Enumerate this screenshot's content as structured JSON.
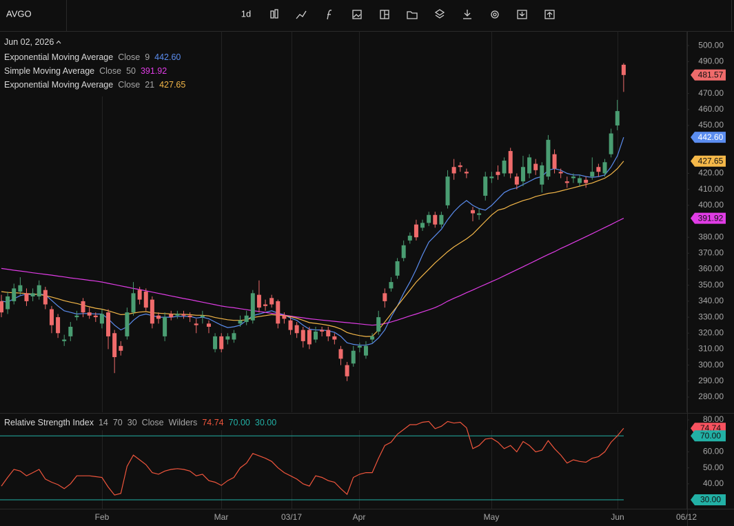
{
  "toolbar": {
    "symbol": "AVGO",
    "interval": "1d"
  },
  "chart_data": [
    {
      "type": "candlestick",
      "date": "Jun 02, 2026",
      "up_color": "#4a9d72",
      "down_color": "#ef6b6b",
      "open": [
        340,
        335,
        340,
        346,
        345,
        343,
        343,
        347,
        335,
        330,
        315,
        318,
        330,
        340,
        333,
        331,
        326,
        333,
        320,
        312,
        318,
        333,
        347,
        346,
        341,
        331,
        318,
        332,
        331,
        332,
        331,
        326,
        330,
        326,
        310,
        318,
        316,
        316,
        326,
        327,
        328,
        344,
        338,
        342,
        340,
        331,
        328,
        325,
        322,
        322,
        316,
        322,
        322,
        318,
        310,
        300,
        301,
        311,
        306,
        316,
        321,
        345,
        348,
        356,
        367,
        378,
        388,
        386,
        389,
        394,
        388,
        400,
        424,
        425,
        421,
        397,
        394,
        406,
        417,
        421,
        420,
        434,
        418,
        415,
        420,
        426,
        413,
        418,
        432,
        421,
        415,
        417,
        414,
        416,
        418,
        424,
        420,
        432,
        450,
        488
      ],
      "high": [
        344,
        346,
        351,
        355,
        348,
        348,
        353,
        349,
        337,
        332,
        319,
        327,
        334,
        342,
        336,
        333,
        335,
        335,
        322,
        315,
        336,
        352,
        349,
        348,
        343,
        333,
        333,
        334,
        334,
        334,
        333,
        329,
        334,
        328,
        320,
        320,
        320,
        322,
        331,
        334,
        347,
        353,
        341,
        344,
        341,
        333,
        330,
        327,
        324,
        324,
        324,
        324,
        324,
        320,
        312,
        302,
        312,
        314,
        315,
        320,
        334,
        348,
        355,
        367,
        378,
        383,
        391,
        391,
        396,
        396,
        396,
        422,
        429,
        427,
        423,
        399,
        398,
        421,
        421,
        425,
        430,
        436,
        420,
        431,
        432,
        429,
        427,
        444,
        435,
        423,
        418,
        420,
        419,
        418,
        430,
        426,
        429,
        448,
        466,
        489
      ],
      "low": [
        330,
        332,
        338,
        344,
        337,
        340,
        341,
        335,
        320,
        317,
        312,
        315,
        328,
        330,
        329,
        327,
        323,
        310,
        295,
        306,
        316,
        331,
        338,
        334,
        323,
        326,
        315,
        328,
        329,
        329,
        327,
        320,
        326,
        320,
        308,
        308,
        313,
        314,
        324,
        325,
        326,
        333,
        334,
        336,
        323,
        326,
        319,
        317,
        311,
        310,
        314,
        318,
        315,
        313,
        300,
        290,
        299,
        308,
        304,
        314,
        319,
        336,
        346,
        354,
        365,
        376,
        378,
        384,
        387,
        386,
        386,
        398,
        416,
        421,
        417,
        390,
        391,
        403,
        414,
        416,
        418,
        417,
        410,
        412,
        417,
        419,
        408,
        416,
        420,
        417,
        411,
        414,
        412,
        411,
        416,
        418,
        418,
        430,
        447,
        471
      ],
      "close": [
        333,
        343,
        348,
        350,
        340,
        345,
        350,
        338,
        325,
        320,
        316,
        324,
        331,
        333,
        331,
        330,
        332,
        318,
        305,
        309,
        333,
        345,
        341,
        336,
        326,
        329,
        330,
        330,
        332,
        331,
        330,
        325,
        331,
        324,
        318,
        310,
        318,
        320,
        328,
        331,
        345,
        336,
        337,
        338,
        326,
        329,
        322,
        320,
        315,
        313,
        321,
        321,
        318,
        316,
        304,
        293,
        309,
        312,
        312,
        318,
        330,
        340,
        352,
        365,
        375,
        381,
        380,
        389,
        394,
        388,
        394,
        418,
        420,
        424,
        420,
        395,
        395,
        418,
        418,
        419,
        428,
        420,
        413,
        424,
        430,
        422,
        425,
        441,
        423,
        420,
        414,
        418,
        417,
        414,
        421,
        421,
        427,
        445,
        459,
        481.57
      ],
      "series": [
        {
          "name": "Exponential Moving Average",
          "source": "Close",
          "period": 9,
          "color": "#5b8def",
          "value_label": "442.60",
          "values": [
            340,
            339.5,
            341.5,
            343.5,
            344.5,
            344,
            344.5,
            344,
            340.5,
            337,
            334,
            333,
            332,
            332.3,
            332.3,
            332,
            332,
            329,
            325,
            322,
            324,
            328,
            331,
            332,
            331,
            330,
            330,
            330,
            330.5,
            330.5,
            330.5,
            329.5,
            330,
            329,
            327,
            325,
            323.5,
            324,
            325,
            328,
            331,
            332,
            333,
            334,
            332.5,
            331.5,
            329.5,
            328,
            325,
            322.5,
            322,
            322,
            321.5,
            320.5,
            318,
            314,
            313,
            312.5,
            312.5,
            313.5,
            317,
            322,
            330,
            337,
            345,
            352,
            360,
            369,
            377,
            381,
            385,
            391,
            396,
            400,
            403,
            400,
            398,
            397,
            400,
            404,
            408,
            410,
            411,
            413,
            415,
            417,
            418,
            422,
            423,
            422,
            420,
            419,
            419,
            418,
            417.5,
            418,
            419,
            424,
            431,
            442.6
          ]
        },
        {
          "name": "Simple Moving Average",
          "source": "Close",
          "period": 50,
          "color": "#e03ce6",
          "values": [
            360.5,
            360,
            359.4,
            358.9,
            358.4,
            357.8,
            357.3,
            356.8,
            356.3,
            355.7,
            355.2,
            354.6,
            354.1,
            353.6,
            353.1,
            352.6,
            352,
            351.2,
            350.4,
            349.6,
            348.8,
            348,
            347.3,
            346.5,
            345.7,
            344.9,
            344.1,
            343.3,
            342.5,
            341.7,
            341,
            340.2,
            339.4,
            338.6,
            337.8,
            337,
            336.4,
            335.9,
            335.3,
            334.7,
            334.1,
            333.6,
            333,
            332.4,
            331.9,
            331.3,
            330.7,
            330.1,
            329.6,
            329,
            328.6,
            328.2,
            327.8,
            327.4,
            327,
            326.6,
            326.2,
            325.8,
            325.4,
            325,
            325.3,
            326,
            327,
            328.2,
            329.5,
            330.8,
            332,
            333.3,
            334.6,
            336,
            337.8,
            340,
            341.8,
            343.5,
            345.3,
            347,
            348.8,
            350.5,
            352.3,
            354,
            355.9,
            357.8,
            359.7,
            361.6,
            363.5,
            365.4,
            367.3,
            369.2,
            371,
            373,
            374.8,
            376.7,
            378.5,
            380.4,
            382.3,
            384.2,
            386.1,
            388,
            390,
            391.92
          ]
        },
        {
          "name": "Exponential Moving Average",
          "source": "Close",
          "period": 21,
          "color": "#f5b849",
          "values": [
            346,
            345.5,
            345.3,
            345.1,
            344.8,
            344.5,
            344.2,
            343.5,
            342.6,
            341.5,
            340.3,
            339.4,
            338.6,
            337.5,
            336.5,
            335.6,
            335,
            334,
            332.8,
            331.6,
            331.8,
            332.6,
            333.2,
            333.5,
            332.8,
            332.5,
            332.3,
            332,
            331.9,
            331.8,
            331.6,
            331.2,
            331.2,
            330.8,
            329.8,
            329.1,
            328.4,
            328,
            328,
            328.3,
            329.8,
            330.4,
            331,
            331.6,
            331.2,
            331,
            330.3,
            329.4,
            328,
            326.6,
            326.1,
            325.6,
            324.9,
            324,
            322.6,
            320.4,
            319.3,
            318.5,
            317.9,
            318,
            322,
            327,
            332,
            337,
            342,
            347,
            352,
            356,
            360,
            364,
            367.5,
            371,
            374,
            376.5,
            379,
            382,
            386,
            390,
            394,
            397,
            398,
            400,
            401.5,
            403,
            404,
            405.5,
            406.5,
            407.5,
            408,
            409,
            410,
            411,
            412,
            413,
            414,
            415.5,
            417,
            419.5,
            423,
            427.65
          ]
        }
      ],
      "ylim": [
        270.5,
        509.1
      ],
      "yticks": [
        {
          "value": 280,
          "label": "280.00"
        },
        {
          "value": 290,
          "label": "290.00"
        },
        {
          "value": 300,
          "label": "300.00"
        },
        {
          "value": 310,
          "label": "310.00"
        },
        {
          "value": 320,
          "label": "320.00"
        },
        {
          "value": 330,
          "label": "330.00"
        },
        {
          "value": 340,
          "label": "340.00"
        },
        {
          "value": 350,
          "label": "350.00"
        },
        {
          "value": 360,
          "label": "360.00"
        },
        {
          "value": 370,
          "label": "370.00"
        },
        {
          "value": 380,
          "label": "380.00"
        },
        {
          "value": 400,
          "label": "400.00"
        },
        {
          "value": 410,
          "label": "410.00"
        },
        {
          "value": 420,
          "label": "420.00"
        },
        {
          "value": 450,
          "label": "450.00"
        },
        {
          "value": 460,
          "label": "460.00"
        },
        {
          "value": 470,
          "label": "470.00"
        },
        {
          "value": 490,
          "label": "490.00"
        },
        {
          "value": 500,
          "label": "500.00"
        }
      ]
    },
    {
      "type": "line",
      "title": "Relative Strength Index",
      "length": 14,
      "source": "Close",
      "smoothing": "Wilders",
      "band_color": "#22b0a5",
      "upper_band": {
        "value": 70,
        "label": "70.00"
      },
      "lower_band": {
        "value": 30,
        "label": "30.00"
      },
      "series": [
        {
          "name": "RSI",
          "color": "#f0553c",
          "values": [
            38.6,
            44,
            49,
            48,
            45,
            47,
            49,
            43,
            41,
            39.5,
            37,
            40,
            45,
            45,
            45,
            44.5,
            44,
            38,
            33,
            34,
            51,
            58,
            55,
            52,
            47,
            46,
            48,
            49,
            49.5,
            49,
            48,
            45,
            46,
            42,
            41,
            39,
            42,
            44,
            50,
            53,
            59,
            57.5,
            56,
            54,
            50,
            47,
            45,
            43,
            40,
            38.6,
            45,
            44,
            42,
            41,
            37,
            33.4,
            44,
            46,
            47,
            47,
            56,
            64,
            66,
            71,
            74,
            77,
            77,
            78.5,
            79,
            74.5,
            76,
            79,
            78,
            78.5,
            75,
            62,
            64,
            68,
            68.5,
            66,
            62,
            64,
            60,
            66.5,
            64,
            60,
            61,
            67,
            62,
            58,
            53,
            55,
            54,
            53.5,
            56,
            57,
            60,
            66,
            70,
            74.74
          ]
        }
      ],
      "ylim": [
        24.4,
        83.9
      ],
      "yticks": [
        {
          "value": 40,
          "label": "40.00"
        },
        {
          "value": 50,
          "label": "50.00"
        },
        {
          "value": 60,
          "label": "60.00"
        },
        {
          "value": 80,
          "label": "80.00"
        }
      ],
      "xtick_labels": [
        "Feb",
        "Mar",
        "03/17",
        "Apr",
        "May",
        "Jun",
        "06/12"
      ]
    }
  ]
}
